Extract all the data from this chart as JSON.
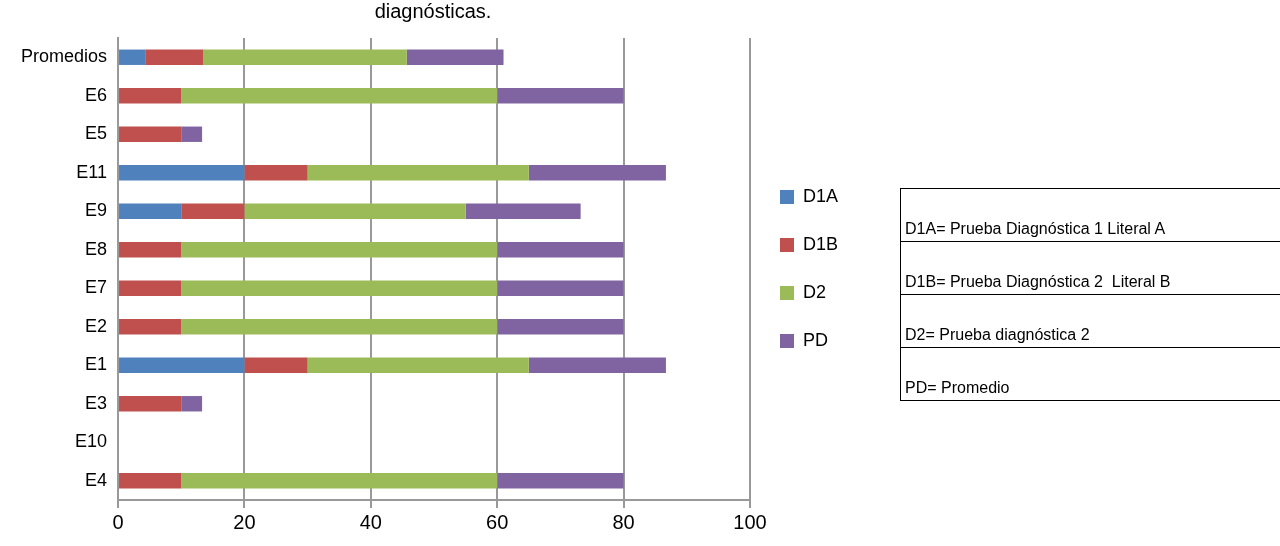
{
  "chart_data": {
    "type": "bar",
    "orientation": "horizontal",
    "stacked": true,
    "title": "diagnósticas.",
    "categories": [
      "Promedios",
      "E6",
      "E5",
      "E11",
      "E9",
      "E8",
      "E7",
      "E2",
      "E1",
      "E3",
      "E10",
      "E4"
    ],
    "series": [
      {
        "name": "D1A",
        "color": "#4f81bd",
        "values": [
          4.3,
          0,
          0,
          20,
          10,
          0,
          0,
          0,
          20,
          0,
          0,
          0
        ]
      },
      {
        "name": "D1B",
        "color": "#c0504d",
        "values": [
          9.2,
          10,
          10,
          10,
          10,
          10,
          10,
          10,
          10,
          10,
          0,
          10
        ]
      },
      {
        "name": "D2",
        "color": "#9bbb59",
        "values": [
          32.2,
          50,
          0,
          35,
          35,
          50,
          50,
          50,
          35,
          0,
          0,
          50
        ]
      },
      {
        "name": "PD",
        "color": "#8064a2",
        "values": [
          15.3,
          20,
          3.3,
          21.7,
          18.2,
          20,
          20,
          20,
          21.7,
          3.3,
          0,
          20
        ]
      }
    ],
    "xlim": [
      0,
      100
    ],
    "xticks": [
      0,
      20,
      40,
      60,
      80,
      100
    ],
    "grid": "x",
    "legend": "right",
    "annotations": [
      "D1A= Prueba Diagnóstica 1 Literal A",
      "D1B= Prueba Diagnóstica 2  Literal B",
      "D2= Prueba diagnóstica 2",
      "PD= Promedio"
    ]
  }
}
